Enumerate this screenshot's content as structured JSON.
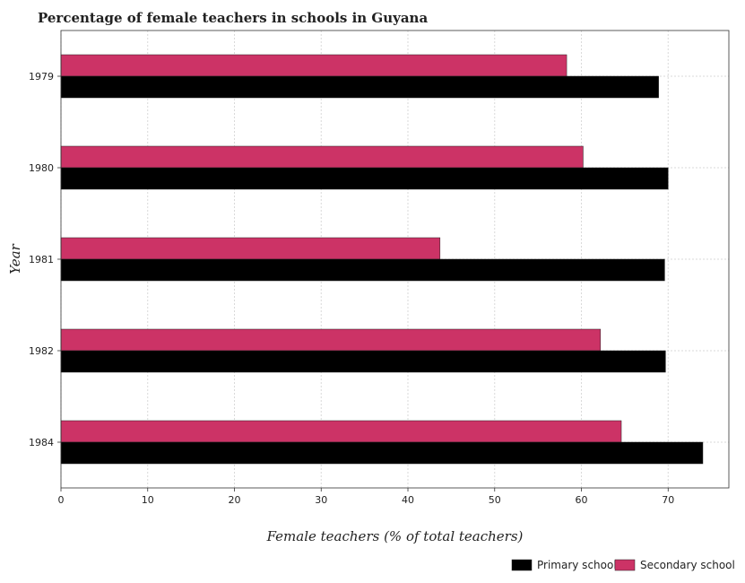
{
  "chart_data": {
    "type": "bar",
    "orientation": "horizontal",
    "title": "Percentage of female teachers in schools in Guyana",
    "xlabel": "Female teachers (% of total teachers)",
    "ylabel": "Year",
    "categories": [
      "1979",
      "1980",
      "1981",
      "1982",
      "1984"
    ],
    "xlim": [
      0,
      77
    ],
    "xticks": [
      0,
      10,
      20,
      30,
      40,
      50,
      60,
      70
    ],
    "series": [
      {
        "name": "Primary school",
        "color": "#000000",
        "values": [
          68.9,
          70.0,
          69.6,
          69.7,
          74.0
        ]
      },
      {
        "name": "Secondary school",
        "color": "#cc3366",
        "values": [
          58.3,
          60.2,
          43.7,
          62.2,
          64.6
        ]
      }
    ],
    "grid": true,
    "legend": "bottom-right"
  }
}
